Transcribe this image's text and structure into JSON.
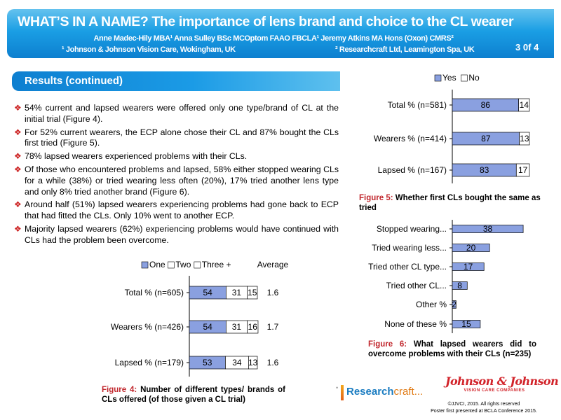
{
  "header": {
    "title": "WHAT’S IN A NAME? The importance of lens brand and choice to the CL wearer",
    "authors": "Anne Madec-Hily MBA¹ Anna Sulley BSc MCOptom FAAO FBCLA¹ Jeremy Atkins MA Hons (Oxon) CMRS²",
    "affiliation_1": "¹ Johnson & Johnson Vision Care, Wokingham, UK",
    "affiliation_2": "² Researchcraft Ltd, Leamington Spa, UK",
    "page": "3 0f 4"
  },
  "section": {
    "label": "Results (continued)"
  },
  "bullets": [
    "54% current and lapsed wearers were offered only one type/brand of CL at the initial trial (Figure 4).",
    "For 52% current wearers, the ECP alone chose their CL and 87% bought the CLs first tried (Figure 5).",
    "78% lapsed wearers experienced problems with their CLs.",
    "Of those who encountered problems and lapsed, 58% either stopped wearing CLs for a while (38%) or tried wearing less often (20%), 17% tried another lens type and only 8% tried another brand (Figure 6).",
    "Around half (51%) lapsed wearers experiencing problems had gone back to ECP that had fitted the CLs. Only 10% went to another ECP.",
    "Majority lapsed wearers (62%) experiencing problems would have continued with CLs had the problem been overcome."
  ],
  "colors": {
    "bar_primary": "#8aa0e0",
    "bar_secondary": "#ffffff",
    "accent_red": "#c1272d",
    "banner_blue": "#1a9ee4"
  },
  "figures": {
    "fig4": {
      "lead": "Figure 4:",
      "caption": "Number of different types/ brands of CLs offered (of those given a CL trial)"
    },
    "fig5": {
      "lead": "Figure 5:",
      "caption": "Whether first CLs bought the same as tried"
    },
    "fig6": {
      "lead": "Figure 6:",
      "caption": "What lapsed wearers did to overcome problems with their CLs (n=235)"
    }
  },
  "chart_data": [
    {
      "id": "fig4",
      "type": "bar",
      "orientation": "horizontal-stacked",
      "categories": [
        "Total % (n=605)",
        "Wearers % (n=426)",
        "Lapsed % (n=179)"
      ],
      "series": [
        {
          "name": "One",
          "values": [
            54,
            54,
            53
          ]
        },
        {
          "name": "Two",
          "values": [
            31,
            31,
            34
          ]
        },
        {
          "name": "Three +",
          "values": [
            15,
            16,
            13
          ]
        }
      ],
      "extra_column": {
        "name": "Average",
        "values": [
          "1.6",
          "1.7",
          "1.6"
        ]
      },
      "legend": "top"
    },
    {
      "id": "fig5",
      "type": "bar",
      "orientation": "horizontal-stacked",
      "categories": [
        "Total % (n=581)",
        "Wearers % (n=414)",
        "Lapsed % (n=167)"
      ],
      "series": [
        {
          "name": "Yes",
          "values": [
            86,
            87,
            83
          ]
        },
        {
          "name": "No",
          "values": [
            14,
            13,
            17
          ]
        }
      ],
      "legend": "top"
    },
    {
      "id": "fig6",
      "type": "bar",
      "orientation": "horizontal",
      "categories": [
        "Stopped wearing...",
        "Tried wearing less...",
        "Tried other CL type...",
        "Tried other CL...",
        "Other %",
        "None of these %"
      ],
      "values": [
        38,
        20,
        17,
        8,
        2,
        15
      ],
      "xlim": [
        0,
        40
      ]
    }
  ],
  "footer": {
    "rc_logo_bold": "Research",
    "rc_logo_light": "craft...",
    "jj_name": "Johnson & Johnson",
    "jj_sub": "VISION CARE COMPANIES",
    "copyright": "©JJVCI, 2015. All rights reserved",
    "presented": "Poster first presented at BCLA Conference 2015."
  }
}
